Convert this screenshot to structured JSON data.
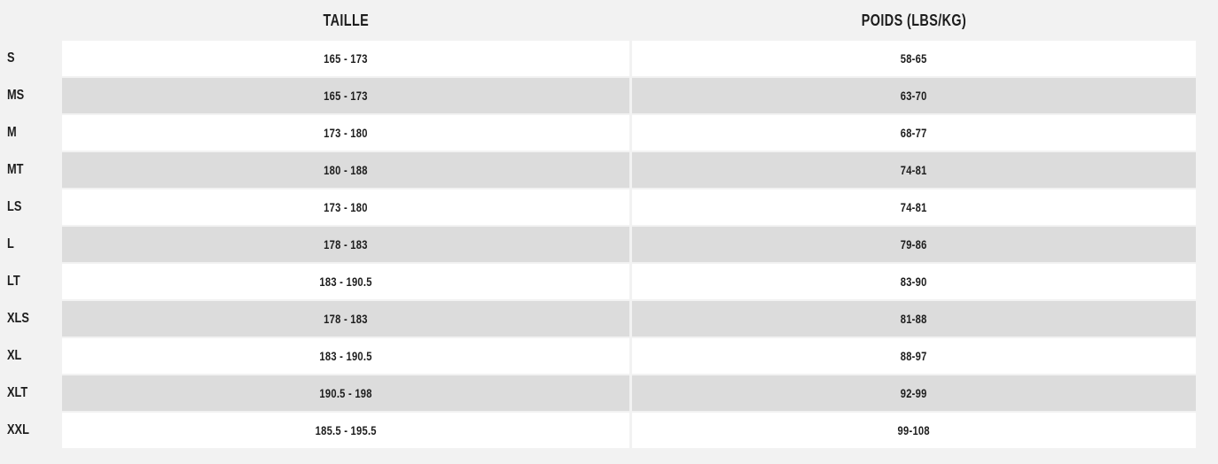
{
  "table": {
    "columns": [
      {
        "label": "TAILLE"
      },
      {
        "label": "POIDS (LBS/KG)"
      }
    ],
    "rows": [
      {
        "size": "S",
        "taille": "165 - 173",
        "poids": "58-65"
      },
      {
        "size": "MS",
        "taille": "165 - 173",
        "poids": "63-70"
      },
      {
        "size": "M",
        "taille": "173 - 180",
        "poids": "68-77"
      },
      {
        "size": "MT",
        "taille": "180 - 188",
        "poids": "74-81"
      },
      {
        "size": "LS",
        "taille": "173 - 180",
        "poids": "74-81"
      },
      {
        "size": "L",
        "taille": "178 - 183",
        "poids": "79-86"
      },
      {
        "size": "LT",
        "taille": "183 - 190.5",
        "poids": "83-90"
      },
      {
        "size": "XLS",
        "taille": "178 - 183",
        "poids": "81-88"
      },
      {
        "size": "XL",
        "taille": "183 - 190.5",
        "poids": "88-97"
      },
      {
        "size": "XLT",
        "taille": "190.5 - 198",
        "poids": "92-99"
      },
      {
        "size": "XXL",
        "taille": "185.5 - 195.5",
        "poids": "99-108"
      }
    ]
  },
  "colors": {
    "page_background": "#f2f2f2",
    "stripe_white": "#ffffff",
    "stripe_gray": "#dcdcdc",
    "text": "#1d1d1d"
  },
  "chart_data": {
    "type": "table",
    "columns": [
      "",
      "TAILLE",
      "POIDS (LBS/KG)"
    ],
    "rows": [
      [
        "S",
        "165 - 173",
        "58-65"
      ],
      [
        "MS",
        "165 - 173",
        "63-70"
      ],
      [
        "M",
        "173 - 180",
        "68-77"
      ],
      [
        "MT",
        "180 - 188",
        "74-81"
      ],
      [
        "LS",
        "173 - 180",
        "74-81"
      ],
      [
        "L",
        "178 - 183",
        "79-86"
      ],
      [
        "LT",
        "183 - 190.5",
        "83-90"
      ],
      [
        "XLS",
        "178 - 183",
        "81-88"
      ],
      [
        "XL",
        "183 - 190.5",
        "88-97"
      ],
      [
        "XLT",
        "190.5 - 198",
        "92-99"
      ],
      [
        "XXL",
        "185.5 - 195.5",
        "99-108"
      ]
    ],
    "layout": {
      "stripes": "alternating white/gray starting white",
      "label_column": "outside striped area on page background",
      "grid": "off"
    }
  }
}
